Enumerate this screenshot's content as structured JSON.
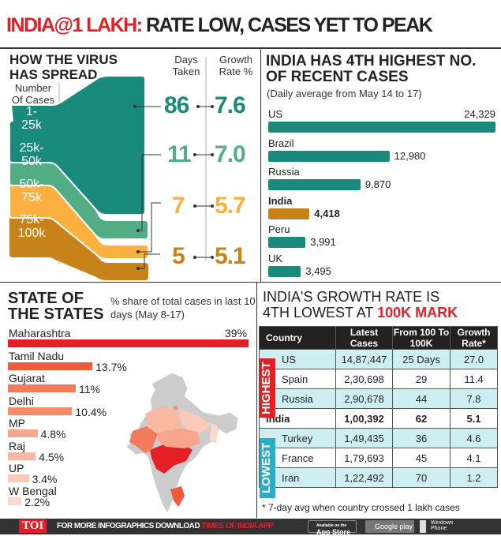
{
  "title": {
    "part1": "INDIA@1 LAKH:",
    "part2": "RATE LOW, CASES YET TO PEAK"
  },
  "spread": {
    "heading": [
      "HOW THE VIRUS",
      "HAS SPREAD"
    ],
    "col_cases": [
      "Number",
      "Of Cases"
    ],
    "col_days": [
      "Days",
      "Taken"
    ],
    "col_rate": [
      "Growth",
      "Rate %"
    ],
    "rows": [
      {
        "range": [
          "1-",
          "25k"
        ],
        "days": "86",
        "rate": "7.6",
        "color": "#1a8a7d"
      },
      {
        "range": [
          "25k-",
          "50k"
        ],
        "days": "11",
        "rate": "7.0",
        "color": "#52ad84"
      },
      {
        "range": [
          "50k-",
          "75k"
        ],
        "days": "7",
        "rate": "5.7",
        "color": "#fbb040"
      },
      {
        "range": [
          "75k-",
          "100k"
        ],
        "days": "5",
        "rate": "5.1",
        "color": "#c8821a"
      }
    ]
  },
  "chart_data": [
    {
      "type": "bar",
      "title": "INDIA HAS 4TH HIGHEST NO. OF RECENT CASES",
      "subtitle": "(Daily average from May 14 to 17)",
      "categories": [
        "US",
        "Brazil",
        "Russia",
        "India",
        "Peru",
        "UK"
      ],
      "values": [
        24329,
        12980,
        9870,
        4418,
        3991,
        3495
      ],
      "value_labels": [
        "24,329",
        "12,980",
        "9,870",
        "4,418",
        "3,991",
        "3,495"
      ],
      "colors": {
        "default": "#1a8a7d",
        "highlight": "#c8821a"
      }
    },
    {
      "type": "bar",
      "title": "STATE OF THE STATES",
      "subtitle": "% share of total cases in last 10 days (May 8-17)",
      "categories": [
        "Maharashtra",
        "Tamil Nadu",
        "Gujarat",
        "Delhi",
        "MP",
        "Raj",
        "UP",
        "W Bengal"
      ],
      "values": [
        39,
        13.7,
        11,
        10.4,
        4.8,
        4.5,
        3.4,
        2.2
      ],
      "value_labels": [
        "39%",
        "13.7%",
        "11%",
        "10.4%",
        "4.8%",
        "4.5%",
        "3.4%",
        "2.2%"
      ],
      "colors": [
        "#e32026",
        "#ef5a3c",
        "#f27b5c",
        "#f48c6c",
        "#f7a58c",
        "#f9b8a2",
        "#fbcabb",
        "#fcd9cc"
      ]
    },
    {
      "type": "table",
      "title": [
        "INDIA'S GROWTH RATE IS",
        "4TH LOWEST AT",
        "100K MARK"
      ],
      "headers": [
        "Country",
        "Latest Cases",
        "From 100 To 100K",
        "Growth Rate*"
      ],
      "groups": {
        "highest": "HIGHEST",
        "lowest": "LOWEST"
      },
      "rows": [
        [
          "US",
          "14,87,447",
          "25 Days",
          "27.0"
        ],
        [
          "Spain",
          "2,30,698",
          "29",
          "11.4"
        ],
        [
          "Russia",
          "2,90,678",
          "44",
          "7.8"
        ],
        [
          "India",
          "1,00,392",
          "62",
          "5.1"
        ],
        [
          "Turkey",
          "1,49,435",
          "36",
          "4.6"
        ],
        [
          "France",
          "1,79,693",
          "45",
          "4.1"
        ],
        [
          "Iran",
          "1,22,492",
          "70",
          "1.2"
        ]
      ],
      "footnote": "* 7-day avg when country crossed 1 lakh cases"
    }
  ],
  "footer": {
    "logo": "TOI",
    "text1": "FOR MORE  INFOGRAPHICS DOWNLOAD",
    "text2": "TIMES OF INDIA APP",
    "appstore_small": "Available on the",
    "appstore": "App Store",
    "googleplay": "Google play",
    "windows": [
      "Windows",
      "Phone"
    ]
  }
}
